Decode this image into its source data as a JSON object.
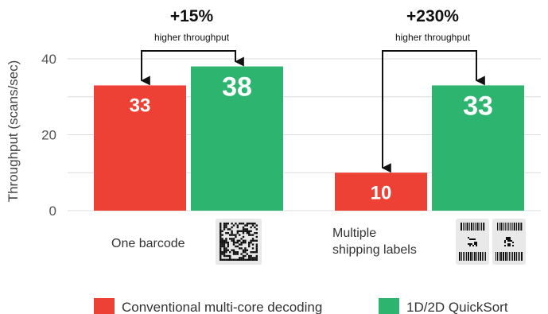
{
  "chart_data": {
    "type": "bar",
    "ylabel": "Throughput (scans/sec)",
    "ylim": [
      0,
      40
    ],
    "yticks": [
      0,
      20,
      40
    ],
    "grid": true,
    "legend_position": "bottom",
    "categories": [
      {
        "label_lines": [
          "One barcode"
        ],
        "icon": "datamatrix-barcode-icon"
      },
      {
        "label_lines": [
          "Multiple",
          "shipping labels"
        ],
        "icon": "shipping-label-icon"
      }
    ],
    "series": [
      {
        "name": "Conventional multi-core decoding",
        "color": "#ee4136",
        "values": [
          33,
          10
        ]
      },
      {
        "name": "1D/2D QuickSort",
        "color": "#2db56f",
        "values": [
          38,
          33
        ]
      }
    ],
    "data_labels": [
      [
        "33",
        "10"
      ],
      [
        "38",
        "33"
      ]
    ],
    "annotations": [
      {
        "value": "+15%",
        "caption": "higher throughput"
      },
      {
        "value": "+230%",
        "caption": "higher throughput"
      }
    ]
  }
}
